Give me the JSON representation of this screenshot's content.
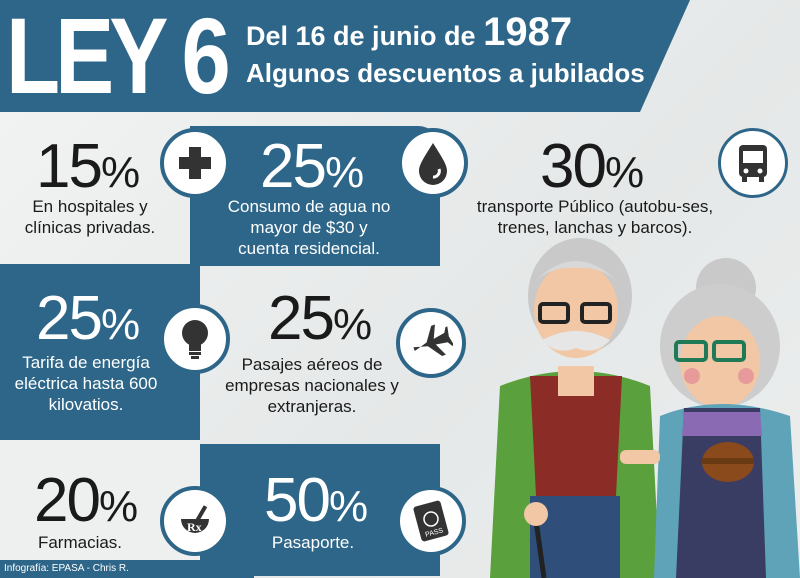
{
  "header": {
    "title": "LEY 6",
    "date_prefix": "Del 16 de junio de",
    "year": "1987",
    "subtitle": "Algunos descuentos a jubilados"
  },
  "items": [
    {
      "pct": "15",
      "sym": "%",
      "desc": "En hospitales y clínicas privadas.",
      "icon": "medical-cross-icon"
    },
    {
      "pct": "25",
      "sym": "%",
      "desc": "Consumo de agua no mayor de $30 y cuenta residencial.",
      "icon": "water-drop-icon"
    },
    {
      "pct": "30",
      "sym": "%",
      "desc": "transporte Público (autobu-ses, trenes, lanchas y barcos).",
      "icon": "bus-icon"
    },
    {
      "pct": "25",
      "sym": "%",
      "desc": "Tarifa de energía eléctrica hasta 600 kilovatios.",
      "icon": "light-bulb-icon"
    },
    {
      "pct": "25",
      "sym": "%",
      "desc": "Pasajes aéreos de empresas nacionales y extranjeras.",
      "icon": "airplane-icon"
    },
    {
      "pct": "20",
      "sym": "%",
      "desc": "Farmacias.",
      "icon": "pharmacy-rx-icon"
    },
    {
      "pct": "50",
      "sym": "%",
      "desc": "Pasaporte.",
      "icon": "passport-icon"
    }
  ],
  "credit": "Infografía: EPASA - Chris R.",
  "colors": {
    "brand_blue": "#2d6688",
    "text_dark": "#1a1a1a"
  }
}
